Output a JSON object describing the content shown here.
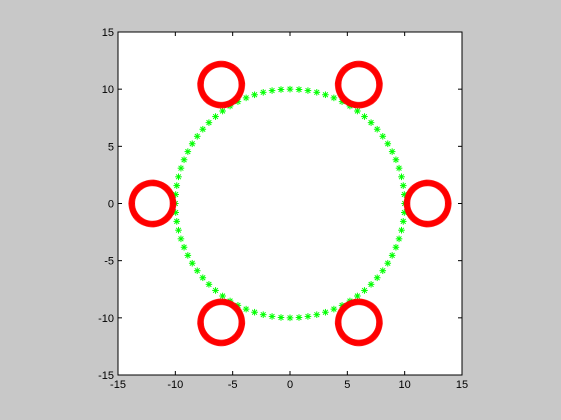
{
  "figure": {
    "background": "#c8c8c8",
    "axes_background": "#ffffff"
  },
  "chart_data": {
    "type": "scatter",
    "title": "",
    "xlabel": "",
    "ylabel": "",
    "xlim": [
      -15,
      15
    ],
    "ylim": [
      -15,
      15
    ],
    "grid": false,
    "xticks": [
      -15,
      -10,
      -5,
      0,
      5,
      10,
      15
    ],
    "yticks": [
      -15,
      -10,
      -5,
      0,
      5,
      10,
      15
    ],
    "xtick_labels": [
      "-15",
      "-10",
      "-5",
      "0",
      "5",
      "10",
      "15"
    ],
    "ytick_labels": [
      "-15",
      "-10",
      "-5",
      "0",
      "5",
      "10",
      "15"
    ],
    "series": [
      {
        "marker": "asterisk",
        "color": "#00ff00",
        "shape": "circle",
        "center": [
          0,
          0
        ],
        "radius": 10,
        "point_count": 80
      },
      {
        "marker": "asterisk",
        "color": "#ff0000",
        "shape": "circles",
        "radius": 1.8,
        "point_count_each": 120,
        "centers": [
          [
            12,
            0
          ],
          [
            6,
            10.4
          ],
          [
            -6,
            10.4
          ],
          [
            -12,
            0
          ],
          [
            -6,
            -10.4
          ],
          [
            6,
            -10.4
          ]
        ]
      }
    ]
  }
}
